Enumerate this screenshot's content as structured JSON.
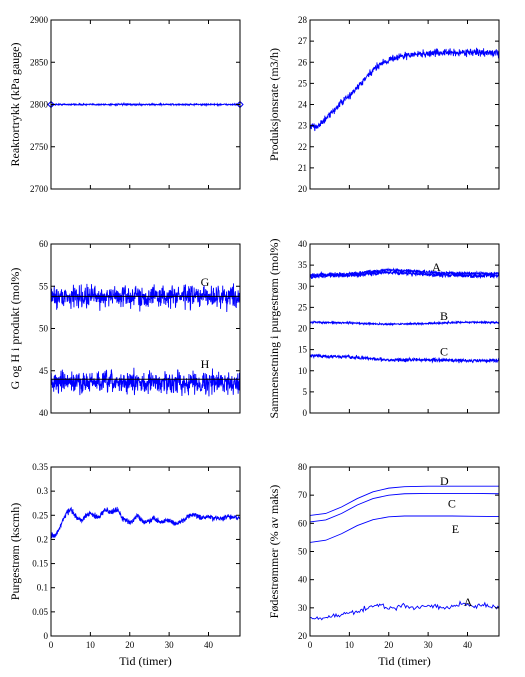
{
  "series_color": "#0000ff",
  "reference_color": "#000000",
  "chart_data": [
    {
      "type": "line",
      "ylabel": "Reaktortrykk (kPa gauge)",
      "xlabel": "",
      "xlim": [
        0,
        48
      ],
      "ylim": [
        2700,
        2900
      ],
      "xticks": [
        0,
        10,
        20,
        30,
        40
      ],
      "xtick_labels_visible": false,
      "yticks": [
        2700,
        2750,
        2800,
        2850,
        2900
      ],
      "annotations": [],
      "series": [
        {
          "style": "noisy",
          "noise": 0.6,
          "endpoint_markers": true,
          "x": [
            0,
            48
          ],
          "y": [
            2800,
            2800
          ]
        }
      ]
    },
    {
      "type": "line",
      "ylabel": "Produksjonsrate (m3/h)",
      "xlabel": "",
      "xlim": [
        0,
        48
      ],
      "ylim": [
        20,
        28
      ],
      "xticks": [
        0,
        10,
        20,
        30,
        40
      ],
      "xtick_labels_visible": false,
      "yticks": [
        20,
        21,
        22,
        23,
        24,
        25,
        26,
        27,
        28
      ],
      "annotations": [],
      "series": [
        {
          "style": "noisy",
          "noise": 0.12,
          "x": [
            0,
            2,
            4,
            6,
            8,
            10,
            12,
            14,
            16,
            17,
            18,
            20,
            22,
            24,
            26,
            28,
            30,
            32,
            34,
            36,
            38,
            40,
            42,
            44,
            46,
            48
          ],
          "y": [
            22.9,
            23.0,
            23.3,
            23.7,
            24.1,
            24.4,
            24.8,
            25.2,
            25.6,
            25.8,
            25.95,
            26.1,
            26.25,
            26.3,
            26.35,
            26.4,
            26.4,
            26.45,
            26.45,
            26.45,
            26.45,
            26.5,
            26.45,
            26.45,
            26.45,
            26.4
          ]
        }
      ]
    },
    {
      "type": "line",
      "ylabel": "G og H i produkt (mol%)",
      "xlabel": "",
      "xlim": [
        0,
        48
      ],
      "ylim": [
        40,
        60
      ],
      "xticks": [
        0,
        10,
        20,
        30,
        40
      ],
      "xtick_labels_visible": false,
      "yticks": [
        40,
        45,
        50,
        55,
        60
      ],
      "annotations": [
        {
          "text": "G",
          "x": 38,
          "y": 55.5
        },
        {
          "text": "H",
          "x": 38,
          "y": 45.8
        }
      ],
      "series": [
        {
          "style": "noisy",
          "noise": 0.9,
          "x": [
            0,
            48
          ],
          "y": [
            53.8,
            53.8
          ]
        },
        {
          "style": "reference",
          "x": [
            0,
            48
          ],
          "y": [
            53.8,
            53.8
          ]
        },
        {
          "style": "noisy",
          "noise": 0.9,
          "x": [
            0,
            48
          ],
          "y": [
            43.6,
            43.6
          ]
        },
        {
          "style": "reference",
          "x": [
            0,
            48
          ],
          "y": [
            44.0,
            44.0
          ]
        }
      ]
    },
    {
      "type": "line",
      "ylabel": "Sammensetning i purgestrøm (mol%)",
      "xlabel": "",
      "xlim": [
        0,
        48
      ],
      "ylim": [
        0,
        40
      ],
      "xticks": [
        0,
        10,
        20,
        30,
        40
      ],
      "xtick_labels_visible": false,
      "yticks": [
        0,
        5,
        10,
        15,
        20,
        25,
        30,
        35,
        40
      ],
      "annotations": [
        {
          "text": "A",
          "x": 31,
          "y": 34.5
        },
        {
          "text": "B",
          "x": 33,
          "y": 23.0
        },
        {
          "text": "C",
          "x": 33,
          "y": 14.5
        }
      ],
      "series": [
        {
          "style": "noisy",
          "noise": 0.35,
          "x": [
            0,
            10,
            20,
            30,
            40,
            48
          ],
          "y": [
            32.3,
            32.6,
            33.3,
            32.8,
            32.5,
            32.4
          ]
        },
        {
          "style": "noisy",
          "noise": 0.3,
          "x": [
            0,
            10,
            20,
            30,
            40,
            48
          ],
          "y": [
            32.6,
            32.9,
            33.9,
            33.3,
            33.0,
            33.0
          ]
        },
        {
          "style": "noisy",
          "noise": 0.15,
          "x": [
            0,
            10,
            20,
            30,
            40,
            48
          ],
          "y": [
            21.5,
            21.3,
            21.0,
            21.2,
            21.5,
            21.4
          ]
        },
        {
          "style": "noisy",
          "noise": 0.3,
          "x": [
            0,
            10,
            20,
            30,
            40,
            48
          ],
          "y": [
            13.6,
            13.2,
            12.6,
            12.6,
            12.4,
            12.4
          ]
        }
      ]
    },
    {
      "type": "line",
      "ylabel": "Purgestrøm (kscmh)",
      "xlabel": "Tid (timer)",
      "xlim": [
        0,
        48
      ],
      "ylim": [
        0,
        0.35
      ],
      "xticks": [
        0,
        10,
        20,
        30,
        40
      ],
      "xtick_labels_visible": true,
      "yticks": [
        0,
        0.05,
        0.1,
        0.15,
        0.2,
        0.25,
        0.3,
        0.35
      ],
      "annotations": [],
      "series": [
        {
          "style": "noisy",
          "noise": 0.004,
          "x": [
            0,
            1,
            2,
            3,
            4,
            5,
            6,
            7,
            8,
            9,
            10,
            11,
            12,
            13,
            14,
            15,
            16,
            17,
            18,
            19,
            20,
            21,
            22,
            23,
            24,
            25,
            26,
            27,
            28,
            29,
            30,
            31,
            32,
            33,
            34,
            35,
            36,
            37,
            38,
            39,
            40,
            41,
            42,
            43,
            44,
            45,
            46,
            47,
            48
          ],
          "y": [
            0.21,
            0.205,
            0.22,
            0.24,
            0.255,
            0.262,
            0.25,
            0.24,
            0.242,
            0.25,
            0.255,
            0.25,
            0.245,
            0.255,
            0.262,
            0.255,
            0.26,
            0.263,
            0.245,
            0.24,
            0.235,
            0.242,
            0.25,
            0.24,
            0.235,
            0.238,
            0.245,
            0.24,
            0.235,
            0.238,
            0.24,
            0.235,
            0.232,
            0.238,
            0.242,
            0.248,
            0.252,
            0.248,
            0.245,
            0.244,
            0.246,
            0.244,
            0.245,
            0.243,
            0.245,
            0.248,
            0.244,
            0.246,
            0.245
          ]
        }
      ]
    },
    {
      "type": "line",
      "ylabel": "Fødestrømmer (% av maks)",
      "xlabel": "Tid (timer)",
      "xlim": [
        0,
        48
      ],
      "ylim": [
        20,
        80
      ],
      "xticks": [
        0,
        10,
        20,
        30,
        40
      ],
      "xtick_labels_visible": true,
      "yticks": [
        20,
        30,
        40,
        50,
        60,
        70,
        80
      ],
      "annotations": [
        {
          "text": "D",
          "x": 33,
          "y": 75
        },
        {
          "text": "C",
          "x": 35,
          "y": 67
        },
        {
          "text": "E",
          "x": 36,
          "y": 58
        },
        {
          "text": "A",
          "x": 39,
          "y": 32
        }
      ],
      "series": [
        {
          "style": "smooth",
          "x": [
            0,
            4,
            8,
            12,
            16,
            20,
            24,
            30,
            36,
            42,
            48
          ],
          "y": [
            62.8,
            63.5,
            65.8,
            68.8,
            71.2,
            72.5,
            73.0,
            73.2,
            73.2,
            73.2,
            73.2
          ]
        },
        {
          "style": "smooth",
          "x": [
            0,
            4,
            8,
            12,
            16,
            20,
            24,
            30,
            36,
            42,
            48
          ],
          "y": [
            60.5,
            61.2,
            63.5,
            66.5,
            68.8,
            70.0,
            70.5,
            70.6,
            70.6,
            70.6,
            70.5
          ]
        },
        {
          "style": "smooth",
          "x": [
            0,
            4,
            8,
            12,
            16,
            20,
            24,
            30,
            36,
            42,
            48
          ],
          "y": [
            53.2,
            54.0,
            56.3,
            59.2,
            61.3,
            62.3,
            62.6,
            62.6,
            62.6,
            62.5,
            62.4
          ]
        },
        {
          "style": "wiggly",
          "noise": 0.6,
          "x": [
            0,
            2,
            4,
            6,
            8,
            10,
            12,
            14,
            16,
            18,
            20,
            22,
            24,
            26,
            28,
            30,
            32,
            34,
            36,
            38,
            40,
            42,
            44,
            46,
            48
          ],
          "y": [
            26.0,
            26.0,
            26.5,
            27.0,
            27.5,
            28.5,
            29.0,
            29.5,
            30.5,
            31.0,
            30.0,
            30.0,
            31.0,
            30.0,
            30.5,
            30.5,
            31.0,
            30.0,
            30.5,
            31.5,
            31.0,
            30.5,
            31.0,
            30.5,
            30.0
          ]
        }
      ]
    }
  ]
}
